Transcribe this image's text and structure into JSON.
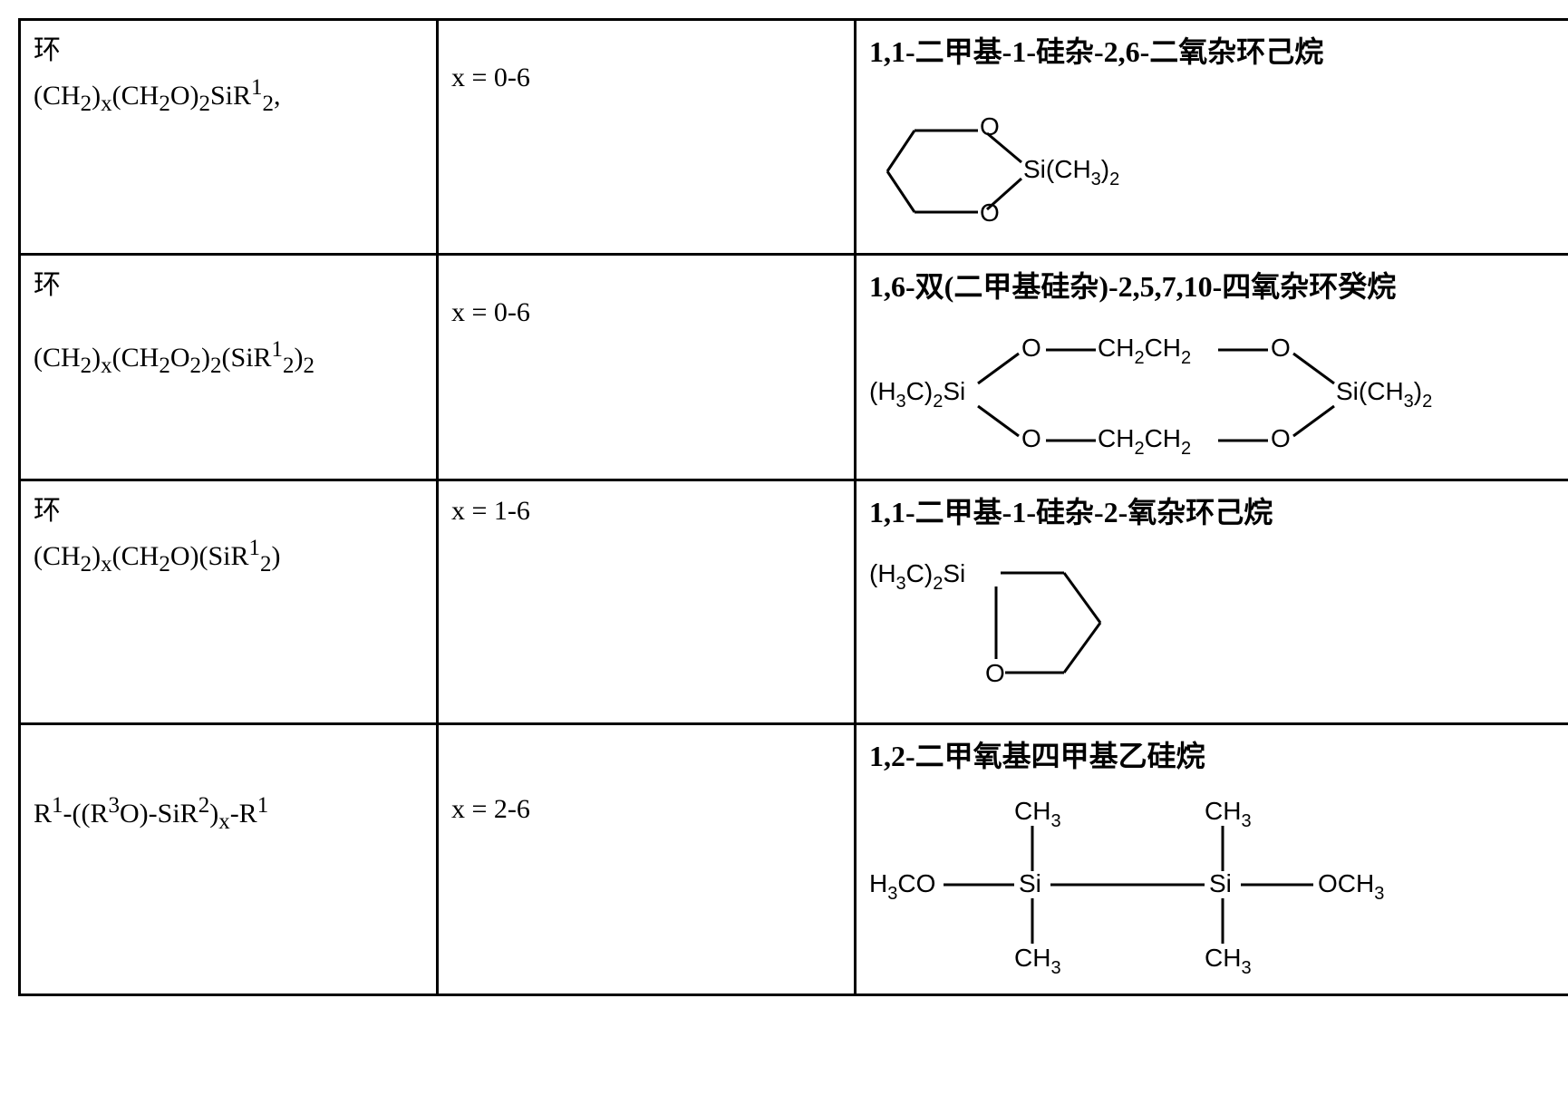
{
  "rows": [
    {
      "prefix": "环",
      "formula_html": "(CH<sub>2</sub>)<sub>x</sub>(CH<sub>2</sub>O)<sub>2</sub>SiR<sup>1</sup><sub>2</sub>,",
      "param": "x = 0-6",
      "name": "1,1-二甲基-1-硅杂-2,6-二氧杂环己烷"
    },
    {
      "prefix": "环",
      "formula_html": "(CH<sub>2</sub>)<sub>x</sub>(CH<sub>2</sub>O<sub>2</sub>)<sub>2</sub>(SiR<sup>1</sup><sub>2</sub>)<sub>2</sub>",
      "param": "x = 0-6",
      "name": "1,6-双(二甲基硅杂)-2,5,7,10-四氧杂环癸烷"
    },
    {
      "prefix": "环",
      "formula_html": "(CH<sub>2</sub>)<sub>x</sub>(CH<sub>2</sub>O)(SiR<sup>1</sup><sub>2</sub>)",
      "param": "x = 1-6",
      "name": "1,1-二甲基-1-硅杂-2-氧杂环己烷"
    },
    {
      "prefix": "",
      "formula_html": "R<sup>1</sup>-((R<sup>3</sup>O)-SiR<sup>2</sup>)<sub>x</sub>-R<sup>1</sup>",
      "param": "x = 2-6",
      "name": "1,2-二甲氧基四甲基乙硅烷"
    }
  ],
  "labels": {
    "O": "O",
    "SiCH32": "Si(CH",
    "SiCH32_tail": ")",
    "H3C2Si": "(H",
    "H3C2Si_mid": "C)",
    "H3C2Si_tail": "Si",
    "CH2CH2": "CH",
    "H3CO": "H",
    "H3CO_tail": "CO",
    "OCH3": "OCH",
    "Si": "Si",
    "CH3": "CH"
  }
}
